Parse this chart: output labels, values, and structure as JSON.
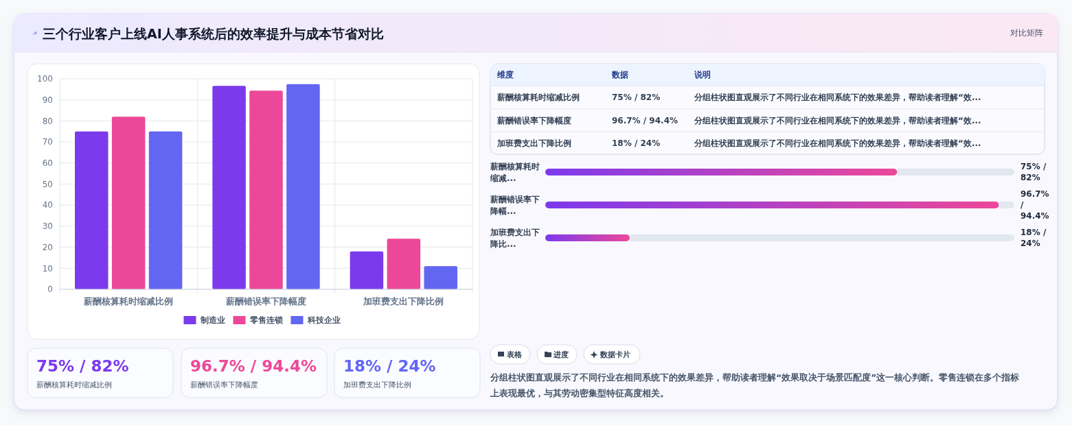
{
  "chart_data": [
    {
      "type": "other",
      "title": "三个行业客户上线AI人事系统后的效率提升与成本节省对比",
      "annotations": [
        "对比矩阵"
      ]
    },
    {
      "type": "bar",
      "categories": [
        "薪酬核算耗时缩减比例",
        "薪酬错误率下降幅度",
        "加班费支出下降比例"
      ],
      "series": [
        {
          "name": "制造业",
          "color": "#7c3aed",
          "values": [
            75,
            96.7,
            18
          ]
        },
        {
          "name": "零售连锁",
          "color": "#ec4899",
          "values": [
            82,
            94.4,
            24
          ]
        },
        {
          "name": "科技企业",
          "color": "#6366f1",
          "values": [
            75,
            97.5,
            11
          ]
        }
      ],
      "ylim": [
        0,
        100
      ],
      "yticks": [
        0,
        10,
        20,
        30,
        40,
        50,
        60,
        70,
        80,
        90,
        100
      ],
      "grid": true,
      "legend": "bottom"
    },
    {
      "type": "other",
      "annotations": [
        "维度",
        "数据",
        "说明",
        "薪酬核算耗时缩减比例",
        "75% / 82%",
        "分组柱状图直观展示了不同行业在相同系统下的效果差异，帮助读者理解“效...",
        "薪酬错误率下降幅度",
        "96.7% / 94.4%",
        "分组柱状图直观展示了不同行业在相同系统下的效果差异，帮助读者理解“效...",
        "加班费支出下降比例",
        "18% / 24%",
        "分组柱状图直观展示了不同行业在相同系统下的效果差异，帮助读者理解“效..."
      ]
    },
    {
      "type": "bar",
      "orientation": "horizontal",
      "categories": [
        "薪酬核算耗时缩减...",
        "薪酬错误率下降幅...",
        "加班费支出下降比..."
      ],
      "values": [
        75,
        96.7,
        18
      ],
      "xlim": [
        0,
        100
      ],
      "color": "#ec4899",
      "value_labels": [
        "75% / 82%",
        "96.7% / 94.4%",
        "18% / 24%"
      ]
    },
    {
      "type": "other",
      "annotations": [
        "75% / 82%",
        "薪酬核算耗时缩减比例",
        "96.7% / 94.4%",
        "薪酬错误率下降幅度",
        "18% / 24%",
        "加班费支出下降比例"
      ],
      "colors": [
        "#7c3aed",
        "#ec4899",
        "#6366f1"
      ]
    },
    {
      "type": "other",
      "annotations": [
        "表格",
        "进度",
        "数据卡片",
        "分组柱状图直观展示了不同行业在相同系统下的效果差异，帮助读者理解“效果取决于场景匹配度”这一核心判断。零售连锁在多个指标上表现最优，与其劳动密集型特征高度相关。"
      ]
    }
  ]
}
